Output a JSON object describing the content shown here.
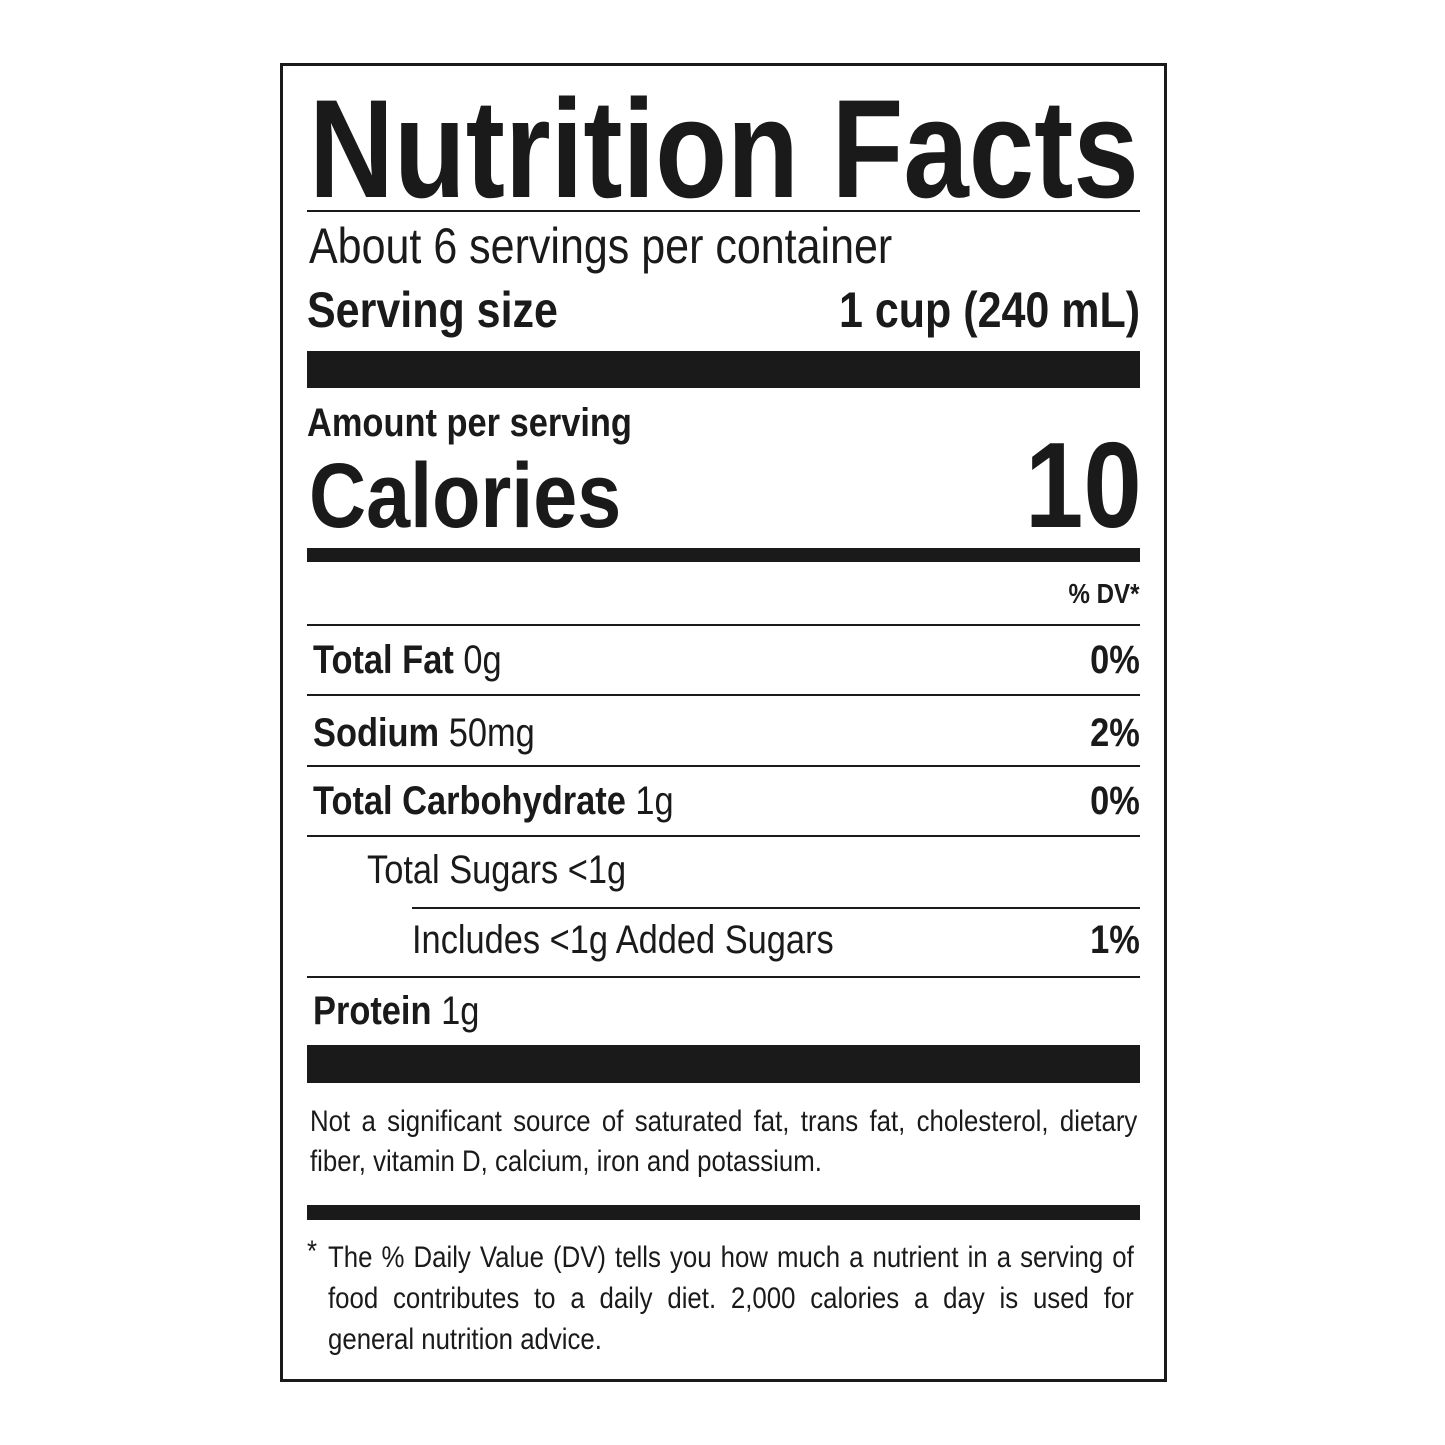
{
  "label": {
    "title": "Nutrition Facts",
    "servings_per_container": "About 6 servings per container",
    "serving_size_label": "Serving size",
    "serving_size_value": "1 cup (240 mL)",
    "amount_per_serving": "Amount per serving",
    "calories_label": "Calories",
    "calories_value": "10",
    "dv_header": "% DV*",
    "nutrients": [
      {
        "name": "Total Fat",
        "amount": "0g",
        "dv": "0%"
      },
      {
        "name": "Sodium",
        "amount": "50mg",
        "dv": "2%"
      },
      {
        "name": "Total Carbohydrate",
        "amount": "1g",
        "dv": "0%"
      },
      {
        "name": "Total Sugars <1g",
        "amount": "",
        "dv": ""
      },
      {
        "name": "Includes <1g Added Sugars",
        "amount": "",
        "dv": "1%"
      },
      {
        "name": "Protein",
        "amount": "1g",
        "dv": ""
      }
    ],
    "not_significant": "Not a significant source of saturated fat, trans fat, cholesterol, dietary fiber, vitamin D, calcium, iron and potassium.",
    "footnote_star": "*",
    "footnote": "The % Daily Value (DV) tells you how much a nutrient in a serving of food contributes to a daily diet. 2,000 calories a day is used for general nutrition advice."
  }
}
